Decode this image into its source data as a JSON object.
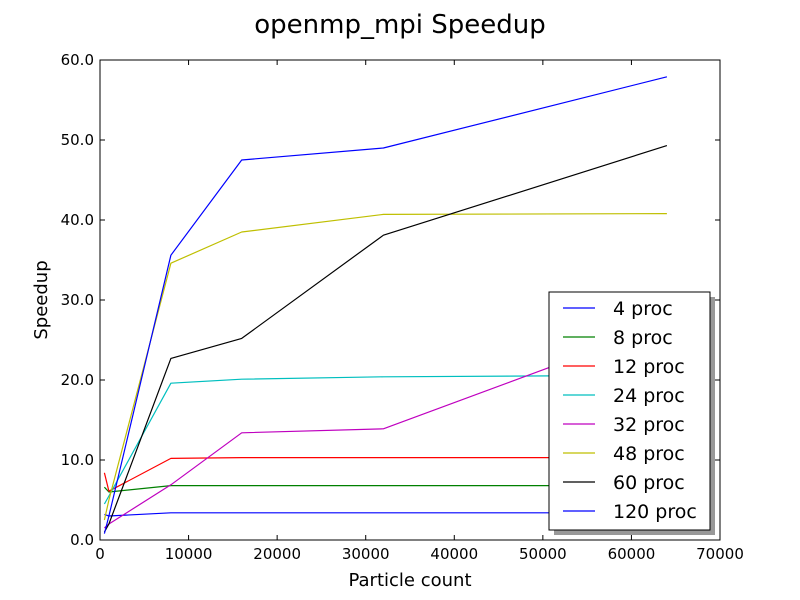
{
  "chart_data": {
    "type": "line",
    "title": "openmp_mpi Speedup",
    "xlabel": "Particle count",
    "ylabel": "Speedup",
    "xlim": [
      0,
      70000
    ],
    "ylim": [
      0,
      60
    ],
    "xticks": [
      0,
      10000,
      20000,
      30000,
      40000,
      50000,
      60000,
      70000
    ],
    "xtick_labels": [
      "0",
      "10000",
      "20000",
      "30000",
      "40000",
      "50000",
      "60000",
      "70000"
    ],
    "yticks": [
      0,
      10,
      20,
      30,
      40,
      50,
      60
    ],
    "ytick_labels": [
      "0.0",
      "10.0",
      "20.0",
      "30.0",
      "40.0",
      "50.0",
      "60.0"
    ],
    "grid": false,
    "legend_position": "lower-right",
    "series": [
      {
        "name": "4 proc",
        "color": "#0000ff",
        "x": [
          500,
          1000,
          8000,
          16000,
          32000,
          64000
        ],
        "y": [
          3.2,
          3.0,
          3.4,
          3.4,
          3.4,
          3.4
        ]
      },
      {
        "name": "8 proc",
        "color": "#008000",
        "x": [
          500,
          1000,
          8000,
          16000,
          32000,
          64000
        ],
        "y": [
          6.6,
          6.0,
          6.8,
          6.8,
          6.8,
          6.8
        ]
      },
      {
        "name": "12 proc",
        "color": "#ff0000",
        "x": [
          500,
          1000,
          8000,
          16000,
          32000,
          64000
        ],
        "y": [
          8.4,
          6.1,
          10.2,
          10.3,
          10.3,
          10.3
        ]
      },
      {
        "name": "24 proc",
        "color": "#00bfbf",
        "x": [
          500,
          1000,
          8000,
          16000,
          32000,
          64000
        ],
        "y": [
          4.5,
          5.5,
          19.6,
          20.1,
          20.4,
          20.6
        ]
      },
      {
        "name": "32 proc",
        "color": "#bf00bf",
        "x": [
          500,
          1000,
          8000,
          16000,
          32000,
          64000
        ],
        "y": [
          1.5,
          2.0,
          6.9,
          13.4,
          13.9,
          27.0
        ]
      },
      {
        "name": "48 proc",
        "color": "#bfbf00",
        "x": [
          500,
          1000,
          8000,
          16000,
          32000,
          64000
        ],
        "y": [
          2.5,
          5.0,
          34.6,
          38.5,
          40.7,
          40.8
        ]
      },
      {
        "name": "60 proc",
        "color": "#000000",
        "x": [
          500,
          1000,
          8000,
          16000,
          32000,
          64000
        ],
        "y": [
          1.0,
          2.0,
          22.7,
          25.2,
          38.1,
          49.3
        ]
      },
      {
        "name": "120 proc",
        "color": "#0000ff",
        "x": [
          500,
          1000,
          8000,
          16000,
          32000,
          64000
        ],
        "y": [
          0.8,
          3.0,
          35.6,
          47.5,
          49.0,
          57.9
        ]
      }
    ]
  }
}
